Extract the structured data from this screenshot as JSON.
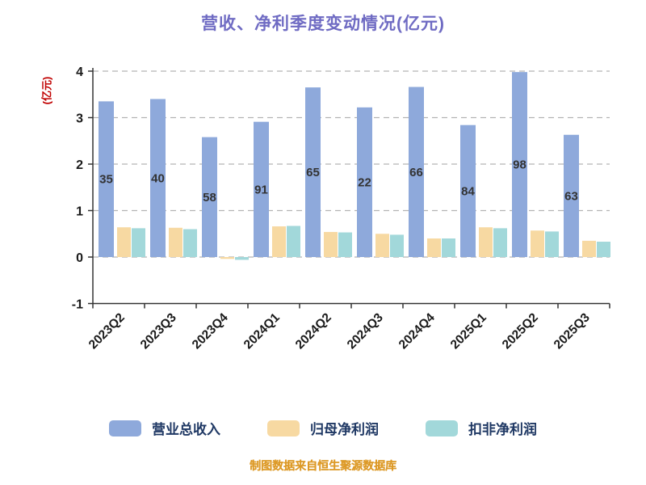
{
  "title": "营收、净利季度变动情况(亿元)",
  "y_axis_label": "(亿元)",
  "footer": "制图数据来自恒生聚源数据库",
  "colors": {
    "title": "#6F6BC3",
    "axis_label": "#C00000",
    "legend_text": "#1F3864",
    "footer": "#DD9A28",
    "grid": "#B3B3B3",
    "axis": "#333333",
    "tick_text": "#1A1A1A",
    "bar_label": "#333333",
    "series_revenue": "#8EA9DB",
    "series_net_profit": "#F7D9A2",
    "series_non_gaap": "#A2D8DA"
  },
  "chart_data": {
    "type": "bar",
    "title": "营收、净利季度变动情况(亿元)",
    "xlabel": "",
    "ylabel": "(亿元)",
    "ylim": [
      -1,
      4
    ],
    "y_ticks": [
      -1,
      0,
      1,
      2,
      3,
      4
    ],
    "grid": "dashed-horizontal",
    "legend_position": "bottom",
    "categories": [
      "2023Q2",
      "2023Q3",
      "2023Q4",
      "2024Q1",
      "2024Q2",
      "2024Q3",
      "2024Q4",
      "2025Q1",
      "2025Q2",
      "2025Q3"
    ],
    "series": [
      {
        "name": "营业总收入",
        "color": "#8EA9DB",
        "values": [
          3.35,
          3.4,
          2.58,
          2.91,
          3.65,
          3.22,
          3.66,
          2.84,
          3.98,
          2.63
        ]
      },
      {
        "name": "归母净利润",
        "color": "#F7D9A2",
        "values": [
          0.64,
          0.63,
          -0.04,
          0.66,
          0.54,
          0.5,
          0.4,
          0.64,
          0.57,
          0.35
        ]
      },
      {
        "name": "扣非净利润",
        "color": "#A2D8DA",
        "values": [
          0.62,
          0.6,
          -0.06,
          0.67,
          0.53,
          0.48,
          0.4,
          0.62,
          0.55,
          0.33
        ]
      }
    ],
    "bar_labels": [
      "35",
      "40",
      "58",
      "91",
      "65",
      "22",
      "66",
      "84",
      "98",
      "63"
    ]
  }
}
